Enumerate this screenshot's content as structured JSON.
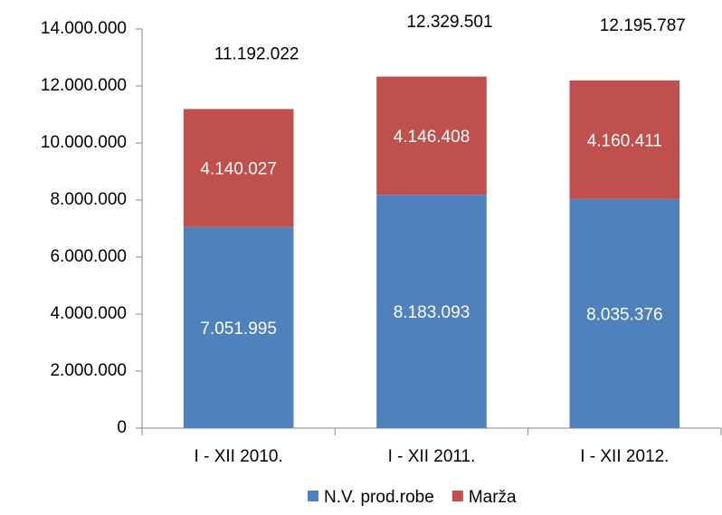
{
  "chart_data": {
    "type": "stacked_bar",
    "categories": [
      "I - XII 2010.",
      "I - XII 2011.",
      "I - XII 2012."
    ],
    "series": [
      {
        "name": "N.V. prod.robe",
        "color": "#4f81bd",
        "values": [
          7051995,
          8183093,
          8035376
        ],
        "value_labels": [
          "7.051.995",
          "8.183.093",
          "8.035.376"
        ]
      },
      {
        "name": "Marža",
        "color": "#c0504d",
        "values": [
          4140027,
          4146408,
          4160411
        ],
        "value_labels": [
          "4.140.027",
          "4.146.408",
          "4.160.411"
        ]
      }
    ],
    "totals": {
      "values": [
        11192022,
        12329501,
        12195787
      ],
      "value_labels": [
        "11.192.022",
        "12.329.501",
        "12.195.787"
      ]
    },
    "ylim": [
      0,
      14000000
    ],
    "yticks": [
      {
        "value": 0,
        "label": "0"
      },
      {
        "value": 2000000,
        "label": "2.000.000"
      },
      {
        "value": 4000000,
        "label": "4.000.000"
      },
      {
        "value": 6000000,
        "label": "6.000.000"
      },
      {
        "value": 8000000,
        "label": "8.000.000"
      },
      {
        "value": 10000000,
        "label": "10.000.000"
      },
      {
        "value": 12000000,
        "label": "12.000.000"
      },
      {
        "value": 14000000,
        "label": "14.000.000"
      }
    ],
    "legend": "bottom"
  }
}
